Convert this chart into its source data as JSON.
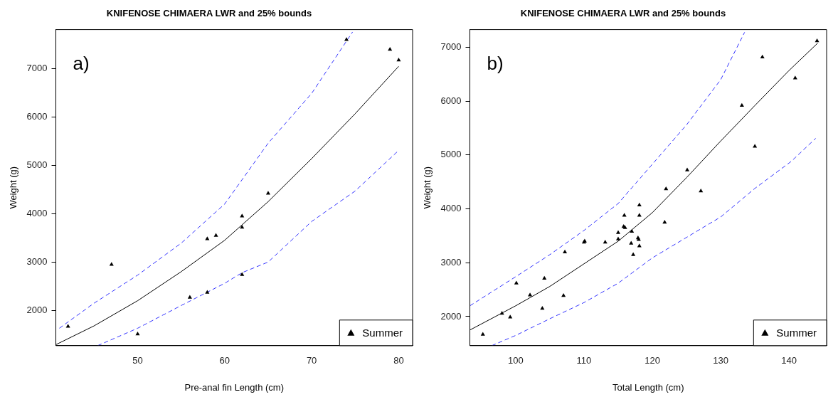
{
  "chart_data": [
    {
      "type": "scatter",
      "title": "KNIFENOSE CHIMAERA LWR and 25% bounds",
      "xlabel": "Pre-anal fin Length (cm)",
      "ylabel": "Weight (g)",
      "annotations": [
        "a)"
      ],
      "xlim": [
        40.6,
        81.6
      ],
      "xticks": [
        50,
        60,
        70,
        80
      ],
      "ylim": [
        1270,
        7810
      ],
      "yticks": [
        2000,
        3000,
        4000,
        5000,
        6000,
        7000
      ],
      "grid": false,
      "legend": "bottom right",
      "series": [
        {
          "name": "Summer",
          "type": "scatter",
          "marker": "triangle",
          "color": "#000000",
          "x": [
            42,
            47,
            50,
            56,
            58,
            58,
            59,
            62,
            62,
            62,
            65,
            74,
            79,
            80
          ],
          "values": [
            1670,
            2950,
            1510,
            2270,
            2370,
            3480,
            3550,
            3950,
            3720,
            2740,
            4420,
            7600,
            7400,
            7180
          ]
        },
        {
          "type": "line",
          "line_style": "solid",
          "color": "#000000",
          "x": [
            40.6,
            45,
            50,
            55,
            60,
            65,
            70,
            75,
            80
          ],
          "values": [
            1290,
            1680,
            2200,
            2800,
            3450,
            4250,
            5140,
            6070,
            7050
          ]
        },
        {
          "type": "line",
          "line_style": "dashed",
          "color": "#3333ff",
          "x": [
            41,
            45,
            50,
            55,
            60,
            65,
            70,
            74.7
          ],
          "values": [
            1630,
            2150,
            2730,
            3390,
            4200,
            5460,
            6490,
            7760
          ]
        },
        {
          "type": "line",
          "line_style": "dashed",
          "color": "#3333ff",
          "x": [
            45.4,
            50,
            55,
            60,
            62,
            65,
            70,
            75,
            80
          ],
          "values": [
            1270,
            1630,
            2100,
            2560,
            2780,
            3000,
            3840,
            4470,
            5310
          ]
        }
      ]
    },
    {
      "type": "scatter",
      "title": "KNIFENOSE CHIMAERA LWR and 25% bounds",
      "xlabel": "Total Length (cm)",
      "ylabel": "Weight (g)",
      "annotations": [
        "b)"
      ],
      "xlim": [
        93.3,
        145.5
      ],
      "xticks": [
        100,
        110,
        120,
        130,
        140
      ],
      "ylim": [
        1460,
        7330
      ],
      "yticks": [
        2000,
        3000,
        4000,
        5000,
        6000,
        7000
      ],
      "grid": false,
      "legend": "bottom right",
      "series": [
        {
          "name": "Summer",
          "type": "scatter",
          "marker": "triangle",
          "color": "#000000",
          "x": [
            95.2,
            98,
            99.2,
            100.1,
            102.1,
            103.9,
            104.2,
            107,
            107.2,
            110,
            110.1,
            113.1,
            115,
            115,
            115.9,
            115.8,
            116,
            117,
            116.9,
            117.2,
            117.9,
            118,
            118.1,
            118.1,
            118.1,
            121.8,
            122,
            125.1,
            127.1,
            133.1,
            135,
            136.1,
            140.9,
            144.1
          ],
          "values": [
            1670,
            2060,
            1990,
            2620,
            2400,
            2150,
            2710,
            2390,
            3200,
            3380,
            3400,
            3380,
            3560,
            3440,
            3880,
            3670,
            3650,
            3580,
            3360,
            3150,
            3460,
            3430,
            3310,
            3880,
            4070,
            3750,
            4370,
            4720,
            4330,
            5920,
            5160,
            6820,
            6430,
            7120
          ]
        },
        {
          "type": "line",
          "line_style": "solid",
          "color": "#000000",
          "x": [
            93.3,
            100,
            105,
            110,
            115,
            120,
            125,
            130,
            135,
            140,
            144.2
          ],
          "values": [
            1750,
            2200,
            2560,
            2980,
            3400,
            3930,
            4580,
            5260,
            5920,
            6570,
            7080
          ]
        },
        {
          "type": "line",
          "line_style": "dashed",
          "color": "#3333ff",
          "x": [
            93.3,
            100,
            105,
            110,
            115,
            120,
            125,
            130,
            133.5
          ],
          "values": [
            2200,
            2740,
            3150,
            3600,
            4100,
            4830,
            5560,
            6400,
            7280
          ]
        },
        {
          "type": "line",
          "line_style": "dashed",
          "color": "#3333ff",
          "x": [
            96.5,
            100,
            105,
            110,
            115,
            120,
            125,
            130,
            135,
            140.3,
            143.9
          ],
          "values": [
            1460,
            1650,
            1960,
            2260,
            2620,
            3090,
            3470,
            3850,
            4380,
            4880,
            5310
          ]
        }
      ]
    }
  ]
}
